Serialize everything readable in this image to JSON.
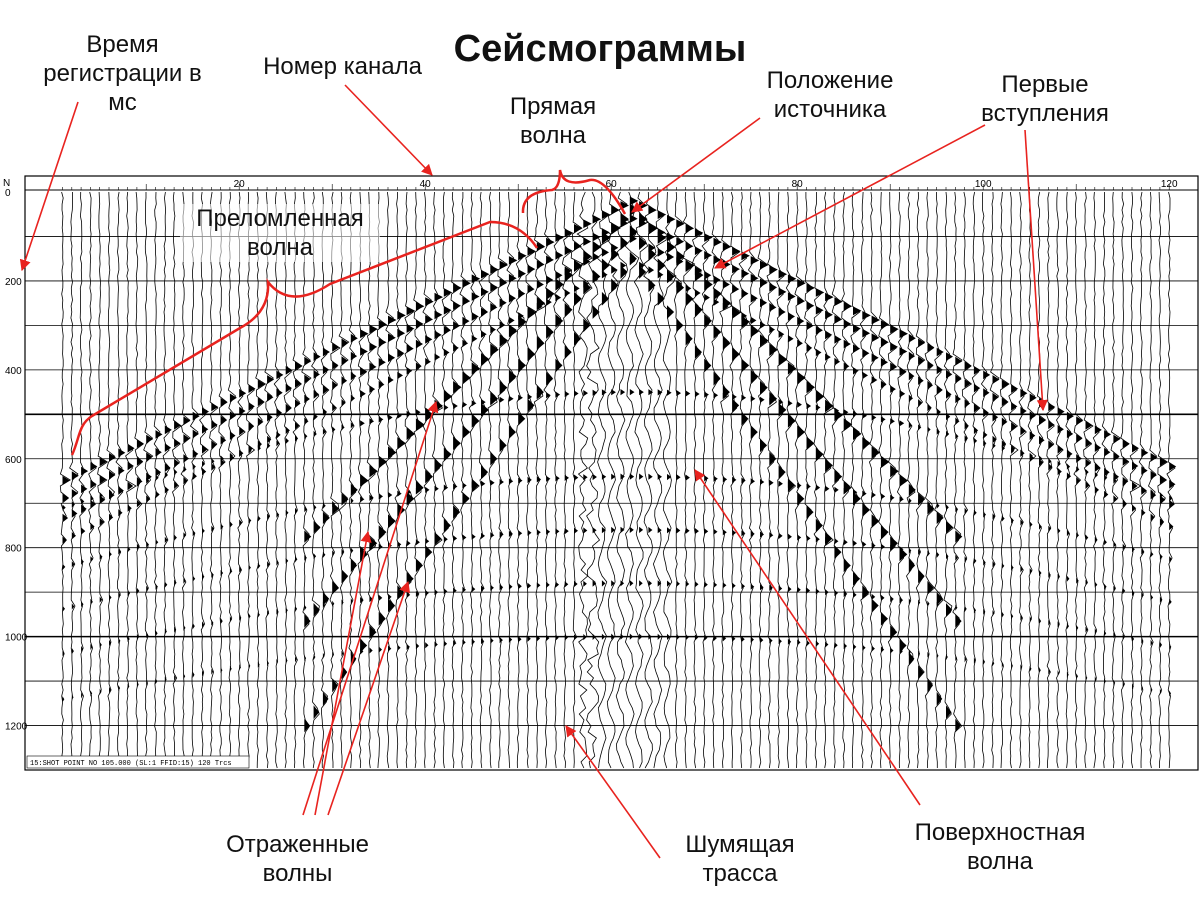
{
  "title": "Сейсмограммы",
  "labels": {
    "time_line1": "Время",
    "time_line2": "регистрации в",
    "time_line3": "мс",
    "channel": "Номер канала",
    "direct_line1": "Прямая",
    "direct_line2": "волна",
    "source_line1": "Положение",
    "source_line2": "источника",
    "first_line1": "Первые",
    "first_line2": "вступления",
    "refracted_line1": "Преломленная",
    "refracted_line2": "волна",
    "reflected_line1": "Отраженные",
    "reflected_line2": "волны",
    "noisy_line1": "Шумящая",
    "noisy_line2": "трасса",
    "surface_line1": "Поверхностная",
    "surface_line2": "волна"
  },
  "seismogram": {
    "corner_label": "N",
    "channel_ticks": [
      "20",
      "40",
      "60",
      "80",
      "100",
      "120"
    ],
    "time_ticks": [
      "0",
      "200",
      "400",
      "600",
      "800",
      "1000",
      "1200"
    ],
    "footer": "15:SHOT POINT NO 105.000 (SL:1 FFID:15) 120 Trcs",
    "channels": 120,
    "source_channel": 62,
    "noisy_channel": 57,
    "time_max_ms": 1300
  },
  "colors": {
    "annotation": "#e8231f",
    "ink": "#000000"
  }
}
